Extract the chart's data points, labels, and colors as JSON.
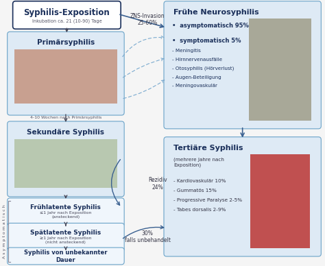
{
  "bg_color": "#f5f5f5",
  "box_border_blue": "#6aa3c8",
  "box_fill_blue": "#deeaf5",
  "box_fill_white": "#f0f6fc",
  "text_dark_blue": "#1a2f5a",
  "text_medium": "#333355",
  "arrow_blue": "#3a6090",
  "arrow_light": "#7aaacf",
  "exposition_title": "Syphilis-Exposition",
  "inkubation_text": "Inkubation ca. 21 (10-90) Tage",
  "primaer_title": "Primärsyphilis",
  "wochen_text": "4-10 Wochen nach Primärsyphilis",
  "sekundaer_title": "Sekundäre Syphilis",
  "fruehlatent_title": "Frühlatente Syphilis",
  "fruehlatent_sub": "≤1 Jahr nach Exposition\n(ansteckend)",
  "spaetlatent_title": "Spätlatente Syphilis",
  "spaetlatent_sub": "≥1 Jahr nach Exposition\n(nicht ansteckend)",
  "unbekannt_title": "Syphilis von unbekannter\nDauer",
  "neuro_title": "Frühe Neurosyphilis",
  "neuro_lines": [
    [
      "•  asymptomatisch 95%",
      true
    ],
    [
      "",
      false
    ],
    [
      "•  symptomatisch 5%",
      true
    ],
    [
      "- Meningitis",
      false
    ],
    [
      "- Hirnnervenausfälle",
      false
    ],
    [
      "- Otosyphilis (Hörverlust)",
      false
    ],
    [
      "- Augen-Beteiligung",
      false
    ],
    [
      "- Meningovaskulär",
      false
    ]
  ],
  "tertiaer_title": "Tertiäre Syphilis",
  "tertiaer_sub": "(mehrere Jahre nach\nExposition)",
  "tertiaer_lines": [
    "- Kardiovaskulär 10%",
    "- Gummatös 15%",
    "- Progressive Paralyse 2-5%",
    "- Tabes dorsalis 2-9%"
  ],
  "zns_text": "ZNS-Invasion\n25-60%",
  "rezidiv_text": "Rezidiv\n24%",
  "dreissig_text": "30%\nfalls unbehandelt",
  "asympt_text": "A s y m p t o m a t i s c h"
}
